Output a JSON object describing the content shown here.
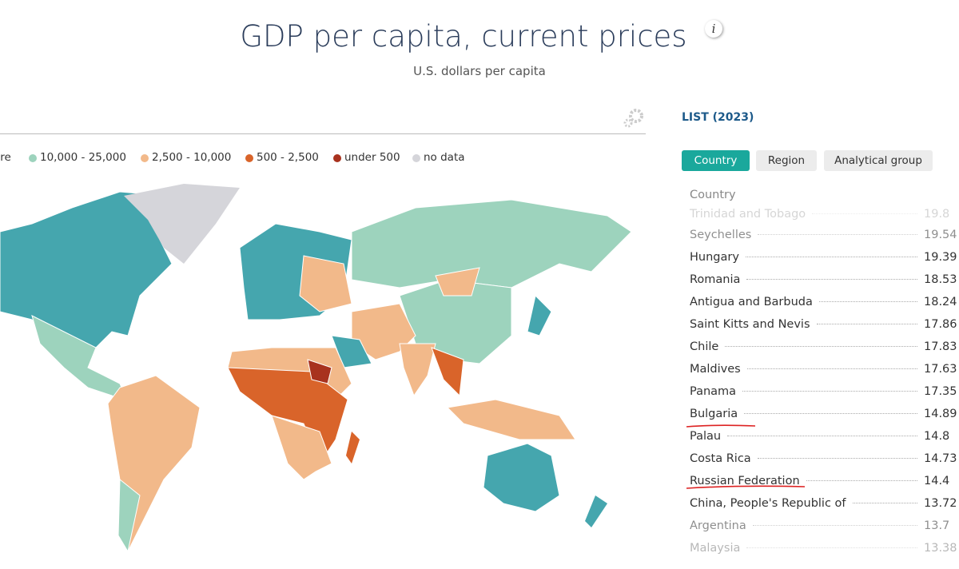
{
  "header": {
    "title": "GDP per capita, current prices",
    "subtitle": "U.S. dollars per capita",
    "info": "i"
  },
  "legend": [
    "ore",
    "10,000 - 25,000",
    "2,500 - 10,000",
    "500 - 2,500",
    "under 500",
    "no data"
  ],
  "list": {
    "title": "LIST (2023)",
    "tabs": [
      "Country",
      "Region",
      "Analytical group"
    ],
    "column": "Country",
    "rows": [
      {
        "name": "Trinidad and Tobago",
        "value": "19.8"
      },
      {
        "name": "Seychelles",
        "value": "19.54"
      },
      {
        "name": "Hungary",
        "value": "19.39"
      },
      {
        "name": "Romania",
        "value": "18.53"
      },
      {
        "name": "Antigua and Barbuda",
        "value": "18.24"
      },
      {
        "name": "Saint Kitts and Nevis",
        "value": "17.86"
      },
      {
        "name": "Chile",
        "value": "17.83"
      },
      {
        "name": "Maldives",
        "value": "17.63"
      },
      {
        "name": "Panama",
        "value": "17.35"
      },
      {
        "name": "Bulgaria",
        "value": "14.89"
      },
      {
        "name": "Palau",
        "value": "14.8"
      },
      {
        "name": "Costa Rica",
        "value": "14.73"
      },
      {
        "name": "Russian Federation",
        "value": "14.4"
      },
      {
        "name": "China, People's Republic of",
        "value": "13.72"
      },
      {
        "name": "Argentina",
        "value": "13.7"
      },
      {
        "name": "Malaysia",
        "value": "13.38"
      }
    ]
  }
}
